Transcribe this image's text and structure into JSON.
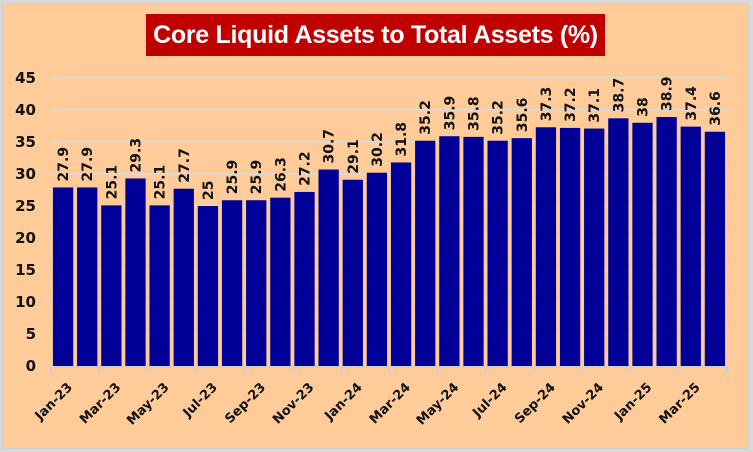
{
  "chart_data": {
    "type": "bar",
    "title": "Core Liquid Assets to Total Assets (%)",
    "xlabel": "",
    "ylabel": "",
    "ylim": [
      0,
      45
    ],
    "yticks": [
      0,
      5,
      10,
      15,
      20,
      25,
      30,
      35,
      40,
      45
    ],
    "grid": true,
    "legend": "none",
    "categories": [
      "Jan-23",
      "Feb-23",
      "Mar-23",
      "Apr-23",
      "May-23",
      "Jun-23",
      "Jul-23",
      "Aug-23",
      "Sep-23",
      "Oct-23",
      "Nov-23",
      "Dec-23",
      "Jan-24",
      "Feb-24",
      "Mar-24",
      "Apr-24",
      "May-24",
      "Jun-24",
      "Jul-24",
      "Aug-24",
      "Sep-24",
      "Oct-24",
      "Nov-24",
      "Dec-24",
      "Jan-25",
      "Feb-25",
      "Mar-25",
      "Apr-25"
    ],
    "x_tick_labels": [
      "Jan-23",
      "",
      "Mar-23",
      "",
      "May-23",
      "",
      "Jul-23",
      "",
      "Sep-23",
      "",
      "Nov-23",
      "",
      "Jan-24",
      "",
      "Mar-24",
      "",
      "May-24",
      "",
      "Jul-24",
      "",
      "Sep-24",
      "",
      "Nov-24",
      "",
      "Jan-25",
      "",
      "Mar-25",
      ""
    ],
    "values": [
      27.9,
      27.9,
      25.1,
      29.3,
      25.1,
      27.7,
      25,
      25.9,
      25.9,
      26.3,
      27.2,
      30.7,
      29.1,
      30.2,
      31.8,
      35.2,
      35.9,
      35.8,
      35.2,
      35.6,
      37.3,
      37.2,
      37.1,
      38.7,
      38,
      38.9,
      37.4,
      36.6
    ],
    "data_labels": [
      "27.9",
      "27.9",
      "25.1",
      "29.3",
      "25.1",
      "27.7",
      "25",
      "25.9",
      "25.9",
      "26.3",
      "27.2",
      "30.7",
      "29.1",
      "30.2",
      "31.8",
      "35.2",
      "35.9",
      "35.8",
      "35.2",
      "35.6",
      "37.3",
      "37.2",
      "37.1",
      "38.7",
      "38",
      "38.9",
      "37.4",
      "36.6"
    ],
    "colors": {
      "bar": "#000099",
      "background": "#ffcc99",
      "title_bg": "#c00000",
      "title_text": "#ffffff",
      "grid": "#d9d9d9"
    }
  }
}
